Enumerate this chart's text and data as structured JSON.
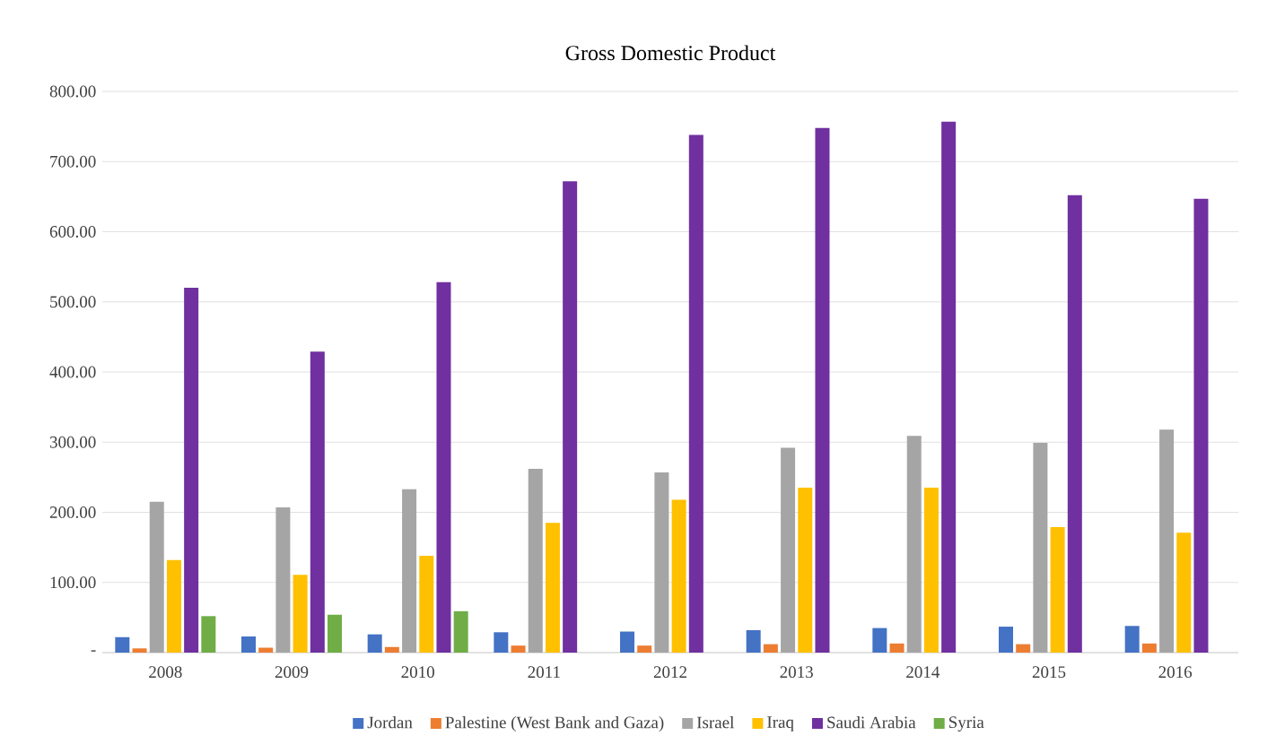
{
  "chart_data": {
    "type": "bar",
    "title": "Gross Domestic Product",
    "categories": [
      "2008",
      "2009",
      "2010",
      "2011",
      "2012",
      "2013",
      "2014",
      "2015",
      "2016"
    ],
    "series": [
      {
        "name": "Jordan",
        "color": "#4472c4",
        "values": [
          22,
          23,
          26,
          29,
          30,
          32,
          35,
          37,
          38
        ]
      },
      {
        "name": "Palestine (West Bank and Gaza)",
        "color": "#ed7d31",
        "values": [
          6,
          7,
          8,
          10,
          10,
          12,
          13,
          12,
          13
        ]
      },
      {
        "name": "Israel",
        "color": "#a5a5a5",
        "values": [
          215,
          207,
          233,
          262,
          257,
          292,
          309,
          299,
          318
        ]
      },
      {
        "name": "Iraq",
        "color": "#ffc000",
        "values": [
          132,
          111,
          138,
          185,
          218,
          235,
          235,
          179,
          171
        ]
      },
      {
        "name": "Saudi Arabia",
        "color": "#7030a0",
        "values": [
          520,
          429,
          528,
          672,
          738,
          748,
          757,
          652,
          647
        ]
      },
      {
        "name": "Syria",
        "color": "#70ad47",
        "values": [
          52,
          54,
          59,
          null,
          null,
          null,
          null,
          null,
          null
        ]
      }
    ],
    "ylim": [
      0,
      800
    ],
    "yticks": [
      {
        "value": 0,
        "label": "-"
      },
      {
        "value": 100,
        "label": "100.00"
      },
      {
        "value": 200,
        "label": "200.00"
      },
      {
        "value": 300,
        "label": "300.00"
      },
      {
        "value": 400,
        "label": "400.00"
      },
      {
        "value": 500,
        "label": "500.00"
      },
      {
        "value": 600,
        "label": "600.00"
      },
      {
        "value": 700,
        "label": "700.00"
      },
      {
        "value": 800,
        "label": "800.00"
      }
    ],
    "grid": "y",
    "legend": "bottom"
  }
}
